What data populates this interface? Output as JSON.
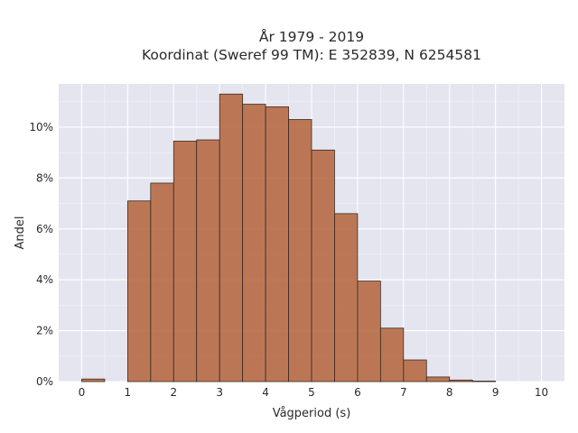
{
  "chart_data": {
    "type": "bar",
    "title_lines": [
      "År 1979 - 2019",
      "Koordinat (Sweref 99 TM): E 352839, N 6254581"
    ],
    "xlabel": "Vågperiod (s)",
    "ylabel": "Andel",
    "x_ticks": [
      "0",
      "1",
      "2",
      "3",
      "4",
      "5",
      "6",
      "7",
      "8",
      "9",
      "10"
    ],
    "y_ticks": [
      "0%",
      "2%",
      "4%",
      "6%",
      "8%",
      "10%"
    ],
    "xlim": [
      -0.5,
      10.5
    ],
    "ylim": [
      0,
      11.7
    ],
    "bin_width": 0.5,
    "bins": [
      {
        "x0": 0.0,
        "value": 0.1
      },
      {
        "x0": 0.5,
        "value": 0.0
      },
      {
        "x0": 1.0,
        "value": 7.1
      },
      {
        "x0": 1.5,
        "value": 7.8
      },
      {
        "x0": 2.0,
        "value": 9.45
      },
      {
        "x0": 2.5,
        "value": 9.5
      },
      {
        "x0": 3.0,
        "value": 11.3
      },
      {
        "x0": 3.5,
        "value": 10.9
      },
      {
        "x0": 4.0,
        "value": 10.8
      },
      {
        "x0": 4.5,
        "value": 10.3
      },
      {
        "x0": 5.0,
        "value": 9.1
      },
      {
        "x0": 5.5,
        "value": 6.6
      },
      {
        "x0": 6.0,
        "value": 3.95
      },
      {
        "x0": 6.5,
        "value": 2.1
      },
      {
        "x0": 7.0,
        "value": 0.85
      },
      {
        "x0": 7.5,
        "value": 0.18
      },
      {
        "x0": 8.0,
        "value": 0.06
      },
      {
        "x0": 8.5,
        "value": 0.02
      }
    ],
    "grid": true,
    "colors": {
      "bar": "#b5683f",
      "plot_bg": "#e5e5f0",
      "grid": "#ffffff"
    }
  }
}
